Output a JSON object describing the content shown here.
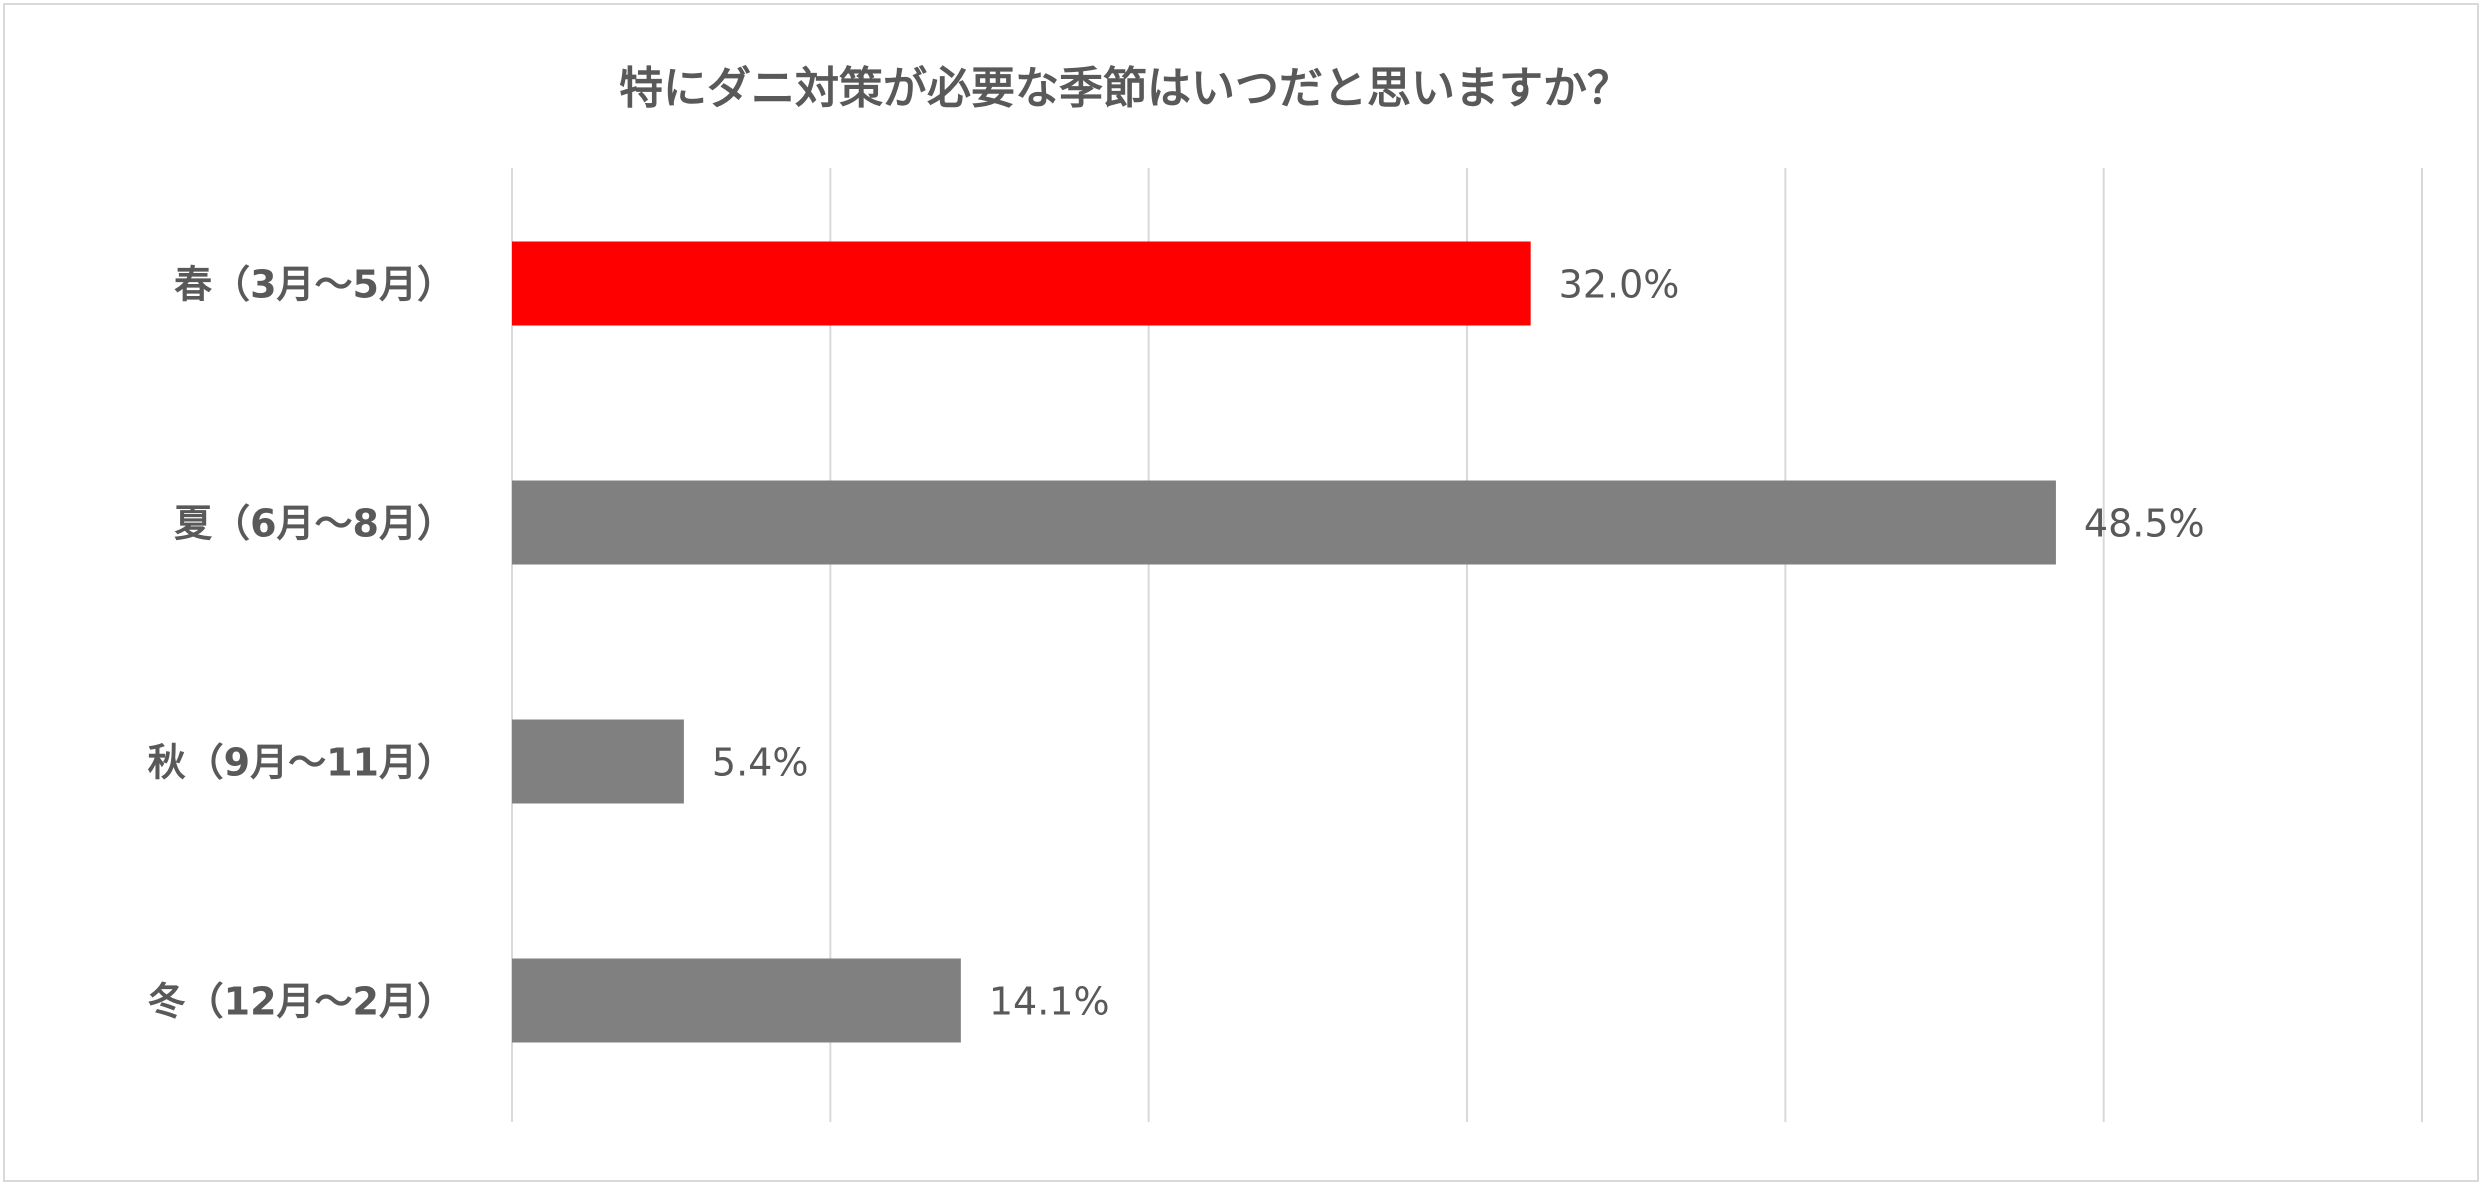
{
  "chart_data": {
    "type": "bar",
    "orientation": "horizontal",
    "title": "特にダニ対策が必要な季節はいつだと思いますか？",
    "xlabel": "",
    "ylabel": "",
    "xlim": [
      0,
      60
    ],
    "grid": true,
    "legend": "none",
    "categories": [
      "春（3月～5月）",
      "夏（6月～8月）",
      "秋（9月～11月）",
      "冬（12月～2月）"
    ],
    "values": [
      32.0,
      48.5,
      5.4,
      14.1
    ],
    "data_labels": [
      "32.0%",
      "48.5%",
      "5.4%",
      "14.1%"
    ],
    "colors": [
      "#ff0000",
      "#808080",
      "#808080",
      "#808080"
    ],
    "gridline_color": "#d9d9d9",
    "label_color": "#595959"
  }
}
